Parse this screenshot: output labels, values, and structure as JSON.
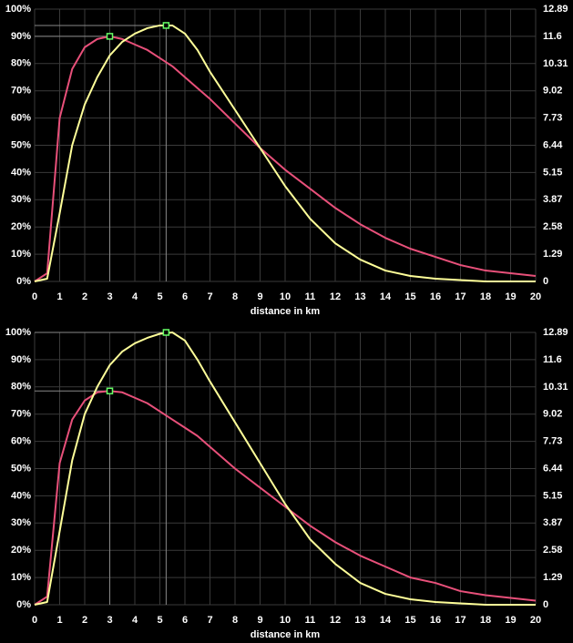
{
  "chart_data": [
    {
      "type": "line",
      "xlabel": "distance in km",
      "x": [
        0,
        0.5,
        1,
        1.5,
        2,
        2.5,
        3,
        3.5,
        4,
        4.5,
        5,
        5.5,
        6,
        6.5,
        7,
        8,
        9,
        10,
        11,
        12,
        13,
        14,
        15,
        16,
        17,
        18,
        19,
        20
      ],
      "series": [
        {
          "color": "#e8507a",
          "values": [
            0,
            3,
            60,
            78,
            86,
            89,
            90,
            89,
            87,
            85,
            82,
            79,
            75,
            71,
            67,
            58,
            49,
            41,
            34,
            27,
            21,
            16,
            12,
            9,
            6,
            4,
            3,
            2
          ]
        },
        {
          "color": "#ffff99",
          "values": [
            0,
            1,
            25,
            50,
            65,
            75,
            83,
            88,
            91,
            93,
            94,
            94,
            91,
            85,
            77,
            63,
            49,
            35,
            23,
            14,
            8,
            4,
            2,
            1,
            0.5,
            0,
            0,
            0
          ]
        }
      ],
      "markers": [
        {
          "x": 3,
          "y": 90
        },
        {
          "x": 5.25,
          "y": 94
        }
      ],
      "marker_color": "#66ff66",
      "xlim": [
        0,
        20
      ],
      "xticks": [
        0,
        1,
        2,
        3,
        4,
        5,
        6,
        7,
        8,
        9,
        10,
        11,
        12,
        13,
        14,
        15,
        16,
        17,
        18,
        19,
        20
      ],
      "ylim": [
        0,
        100
      ],
      "yticks": [
        {
          "value": 0,
          "label": "0%"
        },
        {
          "value": 10,
          "label": "10%"
        },
        {
          "value": 20,
          "label": "20%"
        },
        {
          "value": 30,
          "label": "30%"
        },
        {
          "value": 40,
          "label": "40%"
        },
        {
          "value": 50,
          "label": "50%"
        },
        {
          "value": 60,
          "label": "60%"
        },
        {
          "value": 70,
          "label": "70%"
        },
        {
          "value": 80,
          "label": "80%"
        },
        {
          "value": 90,
          "label": "90%"
        },
        {
          "value": 100,
          "label": "100%"
        }
      ],
      "y2lim": [
        0,
        12.89
      ],
      "y2ticks": [
        0,
        1.29,
        2.58,
        3.87,
        5.15,
        6.44,
        7.73,
        9.02,
        10.31,
        11.6,
        12.89
      ],
      "grid": true
    },
    {
      "type": "line",
      "xlabel": "distance in km",
      "x": [
        0,
        0.5,
        1,
        1.5,
        2,
        2.5,
        3,
        3.5,
        4,
        4.5,
        5,
        5.5,
        6,
        6.5,
        7,
        8,
        9,
        10,
        11,
        12,
        13,
        14,
        15,
        16,
        17,
        18,
        19,
        20
      ],
      "series": [
        {
          "color": "#e8507a",
          "values": [
            0,
            3,
            52,
            68,
            75,
            78,
            78.5,
            78,
            76,
            74,
            71,
            68,
            65,
            62,
            58,
            50,
            43,
            36,
            29,
            23,
            18,
            14,
            10,
            8,
            5,
            3.5,
            2.5,
            1.5
          ]
        },
        {
          "color": "#ffff99",
          "values": [
            0,
            1,
            27,
            53,
            70,
            80,
            88,
            93,
            96,
            98,
            99.5,
            100,
            97,
            90,
            82,
            67,
            52,
            37,
            24,
            15,
            8,
            4,
            2,
            1,
            0.5,
            0,
            0,
            0
          ]
        }
      ],
      "markers": [
        {
          "x": 3,
          "y": 78.5
        },
        {
          "x": 5.25,
          "y": 100
        }
      ],
      "marker_color": "#66ff66",
      "xlim": [
        0,
        20
      ],
      "xticks": [
        0,
        1,
        2,
        3,
        4,
        5,
        6,
        7,
        8,
        9,
        10,
        11,
        12,
        13,
        14,
        15,
        16,
        17,
        18,
        19,
        20
      ],
      "ylim": [
        0,
        100
      ],
      "yticks": [
        {
          "value": 0,
          "label": "0%"
        },
        {
          "value": 10,
          "label": "10%"
        },
        {
          "value": 20,
          "label": "20%"
        },
        {
          "value": 30,
          "label": "30%"
        },
        {
          "value": 40,
          "label": "40%"
        },
        {
          "value": 50,
          "label": "50%"
        },
        {
          "value": 60,
          "label": "60%"
        },
        {
          "value": 70,
          "label": "70%"
        },
        {
          "value": 80,
          "label": "80%"
        },
        {
          "value": 90,
          "label": "90%"
        },
        {
          "value": 100,
          "label": "100%"
        }
      ],
      "y2lim": [
        0,
        12.89
      ],
      "y2ticks": [
        0,
        1.29,
        2.58,
        3.87,
        5.15,
        6.44,
        7.73,
        9.02,
        10.31,
        11.6,
        12.89
      ],
      "grid": true
    }
  ]
}
